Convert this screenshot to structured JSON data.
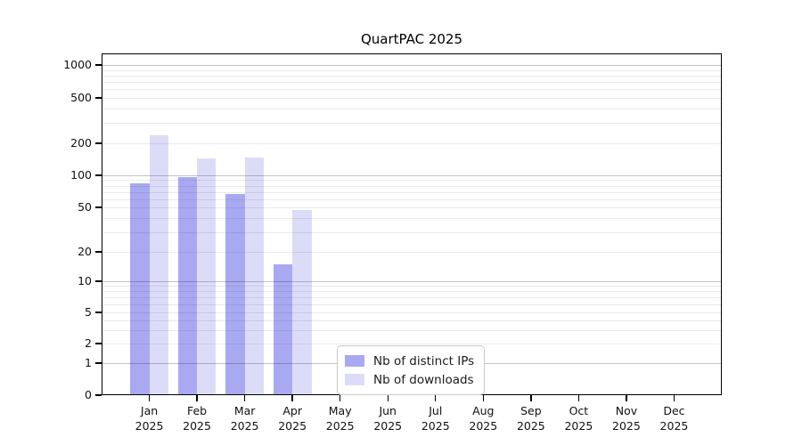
{
  "title": "QuartPAC 2025",
  "year": "2025",
  "legend": {
    "items": [
      {
        "label": "Nb of distinct IPs",
        "color": "#a9a9f2"
      },
      {
        "label": "Nb of downloads",
        "color": "#dcdcf9"
      }
    ]
  },
  "chart_data": {
    "type": "bar",
    "title": "QuartPAC 2025",
    "categories": [
      "Jan 2025",
      "Feb 2025",
      "Mar 2025",
      "Apr 2025",
      "May 2025",
      "Jun 2025",
      "Jul 2025",
      "Aug 2025",
      "Sep 2025",
      "Oct 2025",
      "Nov 2025",
      "Dec 2025"
    ],
    "months": [
      "Jan",
      "Feb",
      "Mar",
      "Apr",
      "May",
      "Jun",
      "Jul",
      "Aug",
      "Sep",
      "Oct",
      "Nov",
      "Dec"
    ],
    "series": [
      {
        "name": "Nb of distinct IPs",
        "color": "#a9a9f2",
        "values": [
          84,
          97,
          67,
          15,
          0,
          0,
          0,
          0,
          0,
          0,
          0,
          0
        ]
      },
      {
        "name": "Nb of downloads",
        "color": "#dcdcf9",
        "values": [
          237,
          145,
          148,
          47,
          0,
          0,
          0,
          0,
          0,
          0,
          0,
          0
        ]
      }
    ],
    "xlabel": "",
    "ylabel": "",
    "yscale": "log-like",
    "y_tick_labels": [
      "0",
      "1",
      "2",
      "5",
      "10",
      "20",
      "50",
      "100",
      "200",
      "500",
      "1000"
    ],
    "y_tick_values": [
      0,
      1,
      2,
      5,
      10,
      20,
      50,
      100,
      200,
      500,
      1000
    ],
    "ylim": [
      0,
      1400
    ],
    "grid": "on",
    "legend_position": "lower-center-inside"
  }
}
